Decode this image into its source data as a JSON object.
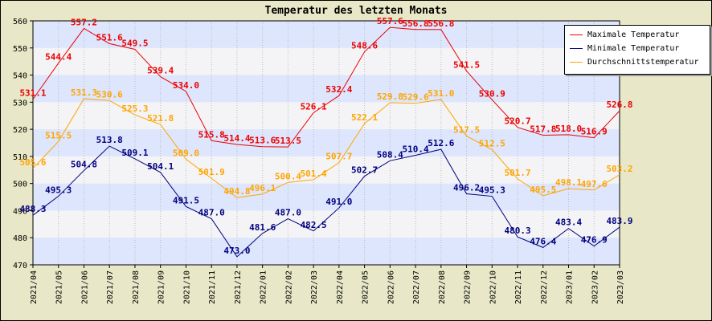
{
  "chart_data": {
    "type": "line",
    "title": "Temperatur des letzten Monats",
    "x": [
      "2021/04",
      "2021/05",
      "2021/06",
      "2021/07",
      "2021/08",
      "2021/09",
      "2021/10",
      "2021/11",
      "2021/12",
      "2022/01",
      "2022/02",
      "2022/03",
      "2022/04",
      "2022/05",
      "2022/06",
      "2022/07",
      "2022/08",
      "2022/09",
      "2022/10",
      "2022/11",
      "2022/12",
      "2023/01",
      "2023/02",
      "2023/03"
    ],
    "ylim": [
      470,
      560
    ],
    "yticks": [
      470,
      480,
      490,
      500,
      510,
      520,
      530,
      540,
      550,
      560
    ],
    "grid": true,
    "legend_position": "top-right",
    "series": [
      {
        "name": "Maximale Temperatur",
        "color": "#ee0000",
        "values": [
          531.1,
          544.4,
          557.2,
          551.6,
          549.5,
          539.4,
          534.0,
          515.8,
          514.4,
          513.6,
          513.5,
          526.1,
          532.4,
          548.6,
          557.6,
          556.8,
          556.8,
          541.5,
          530.9,
          520.7,
          517.8,
          518.0,
          516.9,
          526.8
        ]
      },
      {
        "name": "Minimale Temperatur",
        "color": "#000080",
        "values": [
          488.3,
          495.3,
          504.8,
          513.8,
          509.1,
          504.1,
          491.5,
          487.0,
          473.0,
          481.6,
          487.0,
          482.5,
          491.0,
          502.7,
          508.4,
          510.4,
          512.6,
          496.2,
          495.3,
          480.3,
          476.4,
          483.4,
          476.9,
          483.9
        ]
      },
      {
        "name": "Durchschnittstemperatur",
        "color": "#ffa500",
        "values": [
          505.6,
          515.5,
          531.3,
          530.6,
          525.3,
          521.8,
          509.0,
          501.9,
          494.8,
          496.1,
          500.4,
          501.4,
          507.7,
          522.1,
          529.8,
          529.6,
          531.0,
          517.5,
          512.5,
          501.7,
          495.5,
          498.1,
          497.6,
          503.2
        ]
      }
    ]
  }
}
